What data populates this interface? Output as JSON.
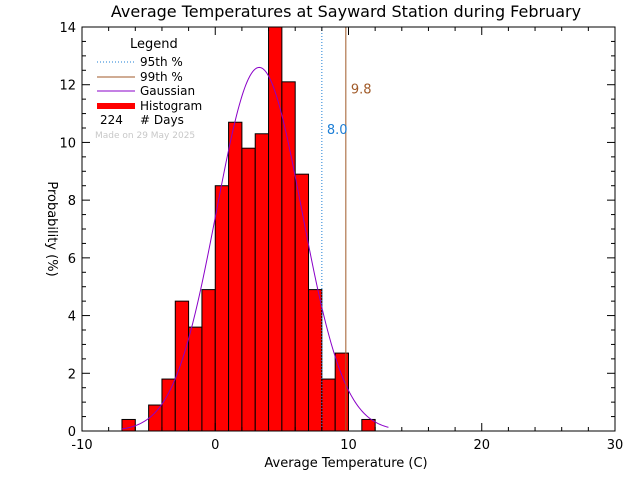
{
  "chart_data": {
    "type": "bar",
    "title": "Average Temperatures at Sayward Station during February",
    "xlabel": "Average Temperature (C)",
    "ylabel": "Probability (%)",
    "xlim": [
      -10,
      30
    ],
    "ylim": [
      0,
      14
    ],
    "xticks": [
      "-10",
      "0",
      "10",
      "20",
      "30"
    ],
    "yticks": [
      "0",
      "2",
      "4",
      "6",
      "8",
      "10",
      "12",
      "14"
    ],
    "bin_width": 1,
    "histogram": {
      "name": "Histogram",
      "bin_left_edges": [
        -7,
        -6,
        -5,
        -4,
        -3,
        -2,
        -1,
        0,
        1,
        2,
        3,
        4,
        5,
        6,
        7,
        8,
        9,
        10,
        11
      ],
      "values": [
        0.4,
        0.0,
        0.9,
        1.8,
        4.5,
        3.6,
        4.9,
        8.5,
        10.7,
        9.8,
        10.3,
        14.0,
        12.1,
        8.9,
        4.9,
        1.8,
        2.7,
        0.0,
        0.4
      ],
      "color": "#ff0000"
    },
    "gaussian": {
      "name": "Gaussian",
      "mean": 3.3,
      "sigma": 3.2,
      "peak": 12.6,
      "x_range": [
        -7,
        13
      ],
      "color": "#8a00c8"
    },
    "p95": {
      "name": "95th %",
      "value": 8.0,
      "label": "8.0",
      "color": "#1e7fd6"
    },
    "p99": {
      "name": "99th %",
      "value": 9.8,
      "label": "9.8",
      "color": "#a05a28"
    },
    "days": {
      "count": "224",
      "label": "# Days"
    },
    "legend": {
      "title": "Legend",
      "placement": "top-left",
      "entries": [
        "95th %",
        "99th %",
        "Gaussian",
        "Histogram"
      ]
    },
    "note": "Made on 29 May 2025"
  }
}
